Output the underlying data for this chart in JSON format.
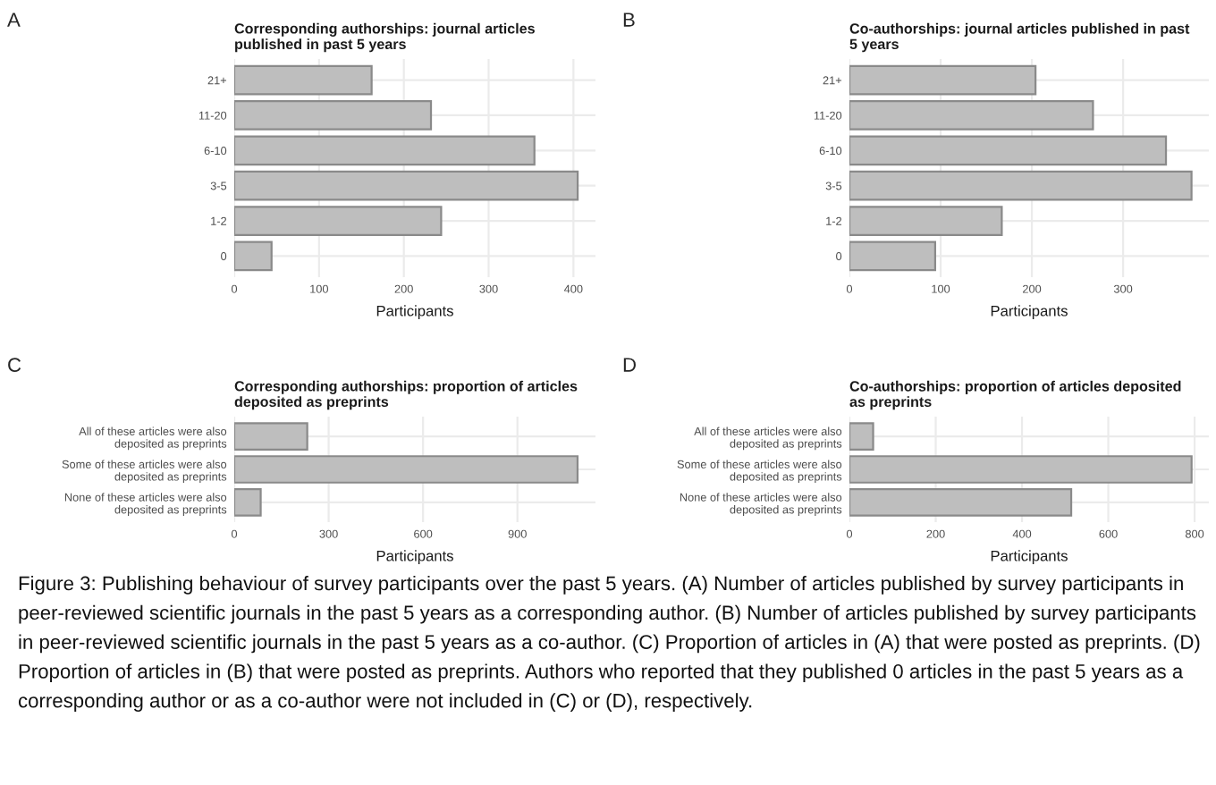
{
  "chart_data": [
    {
      "type": "bar",
      "orientation": "horizontal",
      "title": "Corresponding authorships: journal articles\npublished in past 5 years",
      "xlabel": "Participants",
      "annotations": [
        "A"
      ],
      "categories": [
        "21+",
        "11-20",
        "6-10",
        "3-5",
        "1-2",
        "0"
      ],
      "values": [
        162,
        232,
        354,
        405,
        244,
        44
      ],
      "color": "#bebebe",
      "xlim": [
        0,
        426
      ],
      "xticks": [
        0,
        100,
        200,
        300,
        400
      ],
      "grid": true
    },
    {
      "type": "bar",
      "orientation": "horizontal",
      "title": "Co-authorships: journal articles published in past\n5 years",
      "xlabel": "Participants",
      "annotations": [
        "B"
      ],
      "categories": [
        "21+",
        "11-20",
        "6-10",
        "3-5",
        "1-2",
        "0"
      ],
      "values": [
        204,
        267,
        347,
        375,
        167,
        94
      ],
      "color": "#bebebe",
      "xlim": [
        0,
        394
      ],
      "xticks": [
        0,
        100,
        200,
        300
      ],
      "grid": true
    },
    {
      "type": "bar",
      "orientation": "horizontal",
      "title": "Corresponding authorships: proportion of articles\ndeposited as preprints",
      "xlabel": "Participants",
      "annotations": [
        "C"
      ],
      "categories": [
        "All of these articles were also\ndeposited as preprints",
        "Some of these articles were also\ndeposited as preprints",
        "None of these articles were also\ndeposited as preprints"
      ],
      "values": [
        232,
        1091,
        84
      ],
      "color": "#bebebe",
      "xlim": [
        0,
        1148
      ],
      "xticks": [
        0,
        300,
        600,
        900
      ],
      "grid": true
    },
    {
      "type": "bar",
      "orientation": "horizontal",
      "title": "Co-authorships: proportion of articles deposited\nas preprints",
      "xlabel": "Participants",
      "annotations": [
        "D",
        "Figure 3: Publishing behaviour of survey participants over the past 5 years. (A) Number of articles published by survey participants in peer-reviewed scientific journals in the past 5 years as a corresponding author. (B) Number of articles published by survey participants in peer-reviewed scientific journals in the past 5 years as a co-author. (C) Proportion of articles in (A) that were posted as preprints. (D) Proportion of articles in (B) that were posted as preprints. Authors who reported that they published 0 articles in the past 5 years as a corresponding author or as a co-author were not included in (C) or (D), respectively."
      ],
      "categories": [
        "All of these articles were also\ndeposited as preprints",
        "Some of these articles were also\ndeposited as preprints",
        "None of these articles were also\ndeposited as preprints"
      ],
      "values": [
        55,
        793,
        514
      ],
      "color": "#bebebe",
      "xlim": [
        0,
        833
      ],
      "xticks": [
        0,
        200,
        400,
        600,
        800
      ],
      "grid": true
    }
  ]
}
